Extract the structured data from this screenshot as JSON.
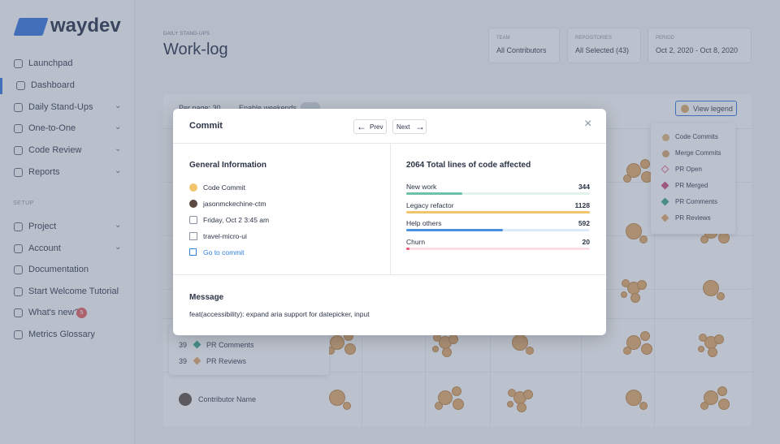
{
  "sidebar": {
    "logo": "waydev",
    "nav": [
      "Launchpad",
      "Dashboard",
      "Daily Stand-Ups",
      "One-to-One",
      "Code Review",
      "Reports"
    ],
    "section": "SETUP",
    "setup": [
      "Project",
      "Account",
      "Documentation",
      "Start Welcome Tutorial",
      "What's new?",
      "Metrics Glossary"
    ],
    "badge": 5
  },
  "header": {
    "kicker": "DAILY STAND-UPS",
    "title": "Work-log"
  },
  "filters": [
    {
      "label": "TEAM",
      "value": "All Contributors"
    },
    {
      "label": "REPOSITORIES",
      "value": "All Selected (43)"
    },
    {
      "label": "PERIOD",
      "value": "Oct 2, 2020 - Oct 8, 2020"
    }
  ],
  "toolbar": {
    "per_page": "Per page: 30",
    "weekends": "Enable weekends",
    "legend_button": "View legend"
  },
  "legend": [
    {
      "name": "Code Commits",
      "shape": "circle",
      "color": "#e0b57a"
    },
    {
      "name": "Merge Commits",
      "shape": "circle",
      "color": "#d8a26a"
    },
    {
      "name": "PR Open",
      "shape": "diamond-outline",
      "color": "#e46a8a"
    },
    {
      "name": "PR Merged",
      "shape": "diamond",
      "color": "#c94a78"
    },
    {
      "name": "PR Comments",
      "shape": "diamond",
      "color": "#3aa389"
    },
    {
      "name": "PR Reviews",
      "shape": "diamond",
      "color": "#e0a86a"
    }
  ],
  "table": {
    "tooltip": [
      {
        "count": 39,
        "label": "PR Comments"
      },
      {
        "count": 39,
        "label": "PR Reviews"
      }
    ],
    "contributor": "Contributor Name"
  },
  "modal": {
    "title": "Commit",
    "prev": "Prev",
    "next": "Next",
    "general": {
      "heading": "General Information",
      "items": [
        "Code Commit",
        "jasonmckechine-ctm",
        "Friday, Oct 2 3:45 am",
        "travel-micro-ui"
      ],
      "link": "Go to commit"
    },
    "lines": {
      "total": 2064,
      "heading": "Total lines of code affected",
      "rows": [
        {
          "label": "New work",
          "value": 344,
          "color": "#6cc2a8"
        },
        {
          "label": "Legacy refactor",
          "value": 1128,
          "color": "#f2c46b"
        },
        {
          "label": "Help others",
          "value": 592,
          "color": "#4a90e2"
        },
        {
          "label": "Churn",
          "value": 20,
          "color": "#e8587a"
        }
      ]
    },
    "message": {
      "heading": "Message",
      "text": "feat(accessibility): expand aria support for datepicker, input"
    }
  }
}
